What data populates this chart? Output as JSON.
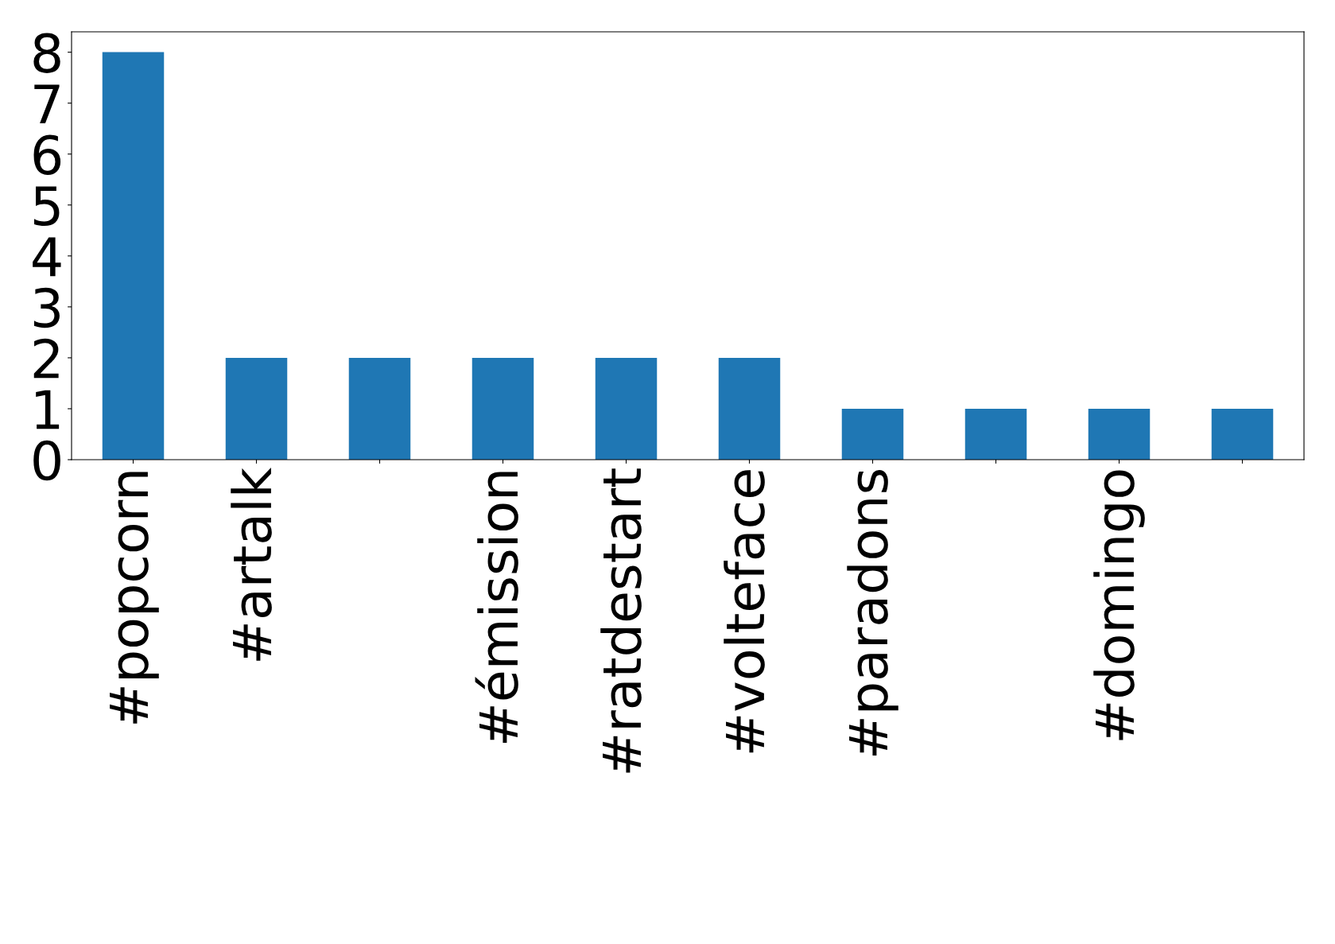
{
  "chart_data": {
    "type": "bar",
    "categories": [
      "#popcorn",
      "#artalk",
      null,
      "#émission",
      "#ratdestart",
      "#volteface",
      "#paradons",
      null,
      "#domingo",
      null
    ],
    "values": [
      8,
      2,
      2,
      2,
      2,
      2,
      1,
      1,
      1,
      1
    ],
    "color": "#1f77b4",
    "ylim": [
      0,
      8.4
    ],
    "yticks": [
      0,
      1,
      2,
      3,
      4,
      5,
      6,
      7,
      8
    ],
    "grid": false,
    "legend": false
  }
}
